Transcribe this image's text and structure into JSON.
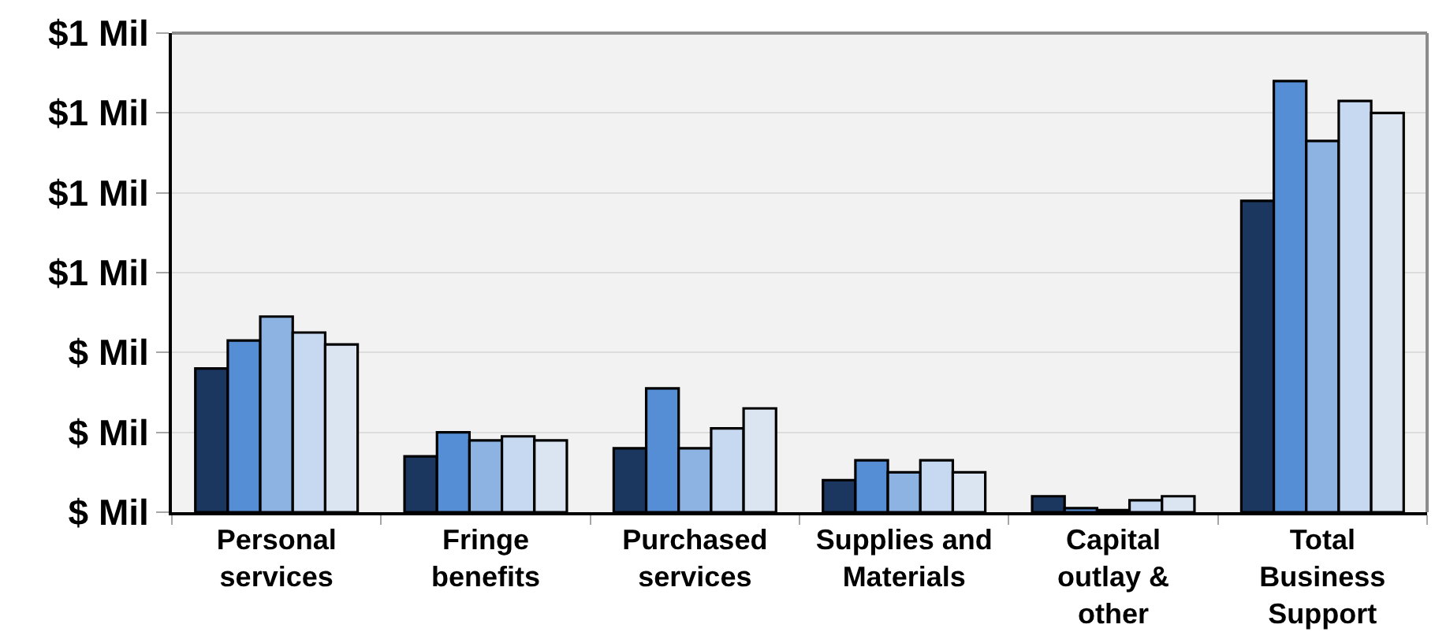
{
  "chart_data": {
    "type": "bar",
    "categories": [
      "Personal services",
      "Fringe benefits",
      "Purchased services",
      "Supplies and Materials",
      "Capital outlay & other",
      "Total Business Support"
    ],
    "series": [
      {
        "color": "#1b375f",
        "values": [
          0.36,
          0.14,
          0.16,
          0.08,
          0.04,
          0.78
        ]
      },
      {
        "color": "#558ed5",
        "values": [
          0.43,
          0.2,
          0.31,
          0.13,
          0.01,
          1.08
        ]
      },
      {
        "color": "#8db3e2",
        "values": [
          0.49,
          0.18,
          0.16,
          0.1,
          0.005,
          0.93
        ]
      },
      {
        "color": "#c6d9f1",
        "values": [
          0.45,
          0.19,
          0.21,
          0.13,
          0.03,
          1.03
        ]
      },
      {
        "color": "#dbe5f1",
        "values": [
          0.42,
          0.18,
          0.26,
          0.1,
          0.04,
          1.0
        ]
      }
    ],
    "ylim": [
      0,
      1.2
    ],
    "yticks": [
      {
        "value": 0,
        "label": "$ Mil"
      },
      {
        "value": 0.2,
        "label": "$ Mil"
      },
      {
        "value": 0.4,
        "label": "$ Mil"
      },
      {
        "value": 0.6,
        "label": "$1 Mil"
      },
      {
        "value": 0.8,
        "label": "$1 Mil"
      },
      {
        "value": 1.0,
        "label": "$1 Mil"
      },
      {
        "value": 1.2,
        "label": "$1 Mil"
      }
    ],
    "grid": "y"
  }
}
